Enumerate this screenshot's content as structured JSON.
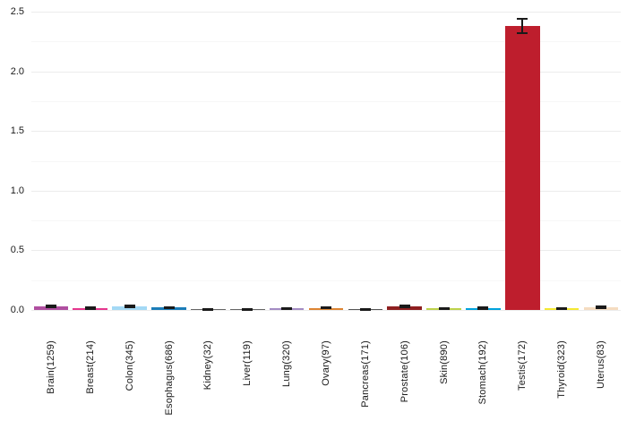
{
  "chart_data": {
    "type": "bar",
    "title": "",
    "xlabel": "",
    "ylabel": "",
    "categories": [
      "Brain(1259)",
      "Breast(214)",
      "Colon(345)",
      "Esophagus(686)",
      "Kidney(32)",
      "Liver(119)",
      "Lung(320)",
      "Ovary(97)",
      "Pancreas(171)",
      "Prostate(106)",
      "Skin(890)",
      "Stomach(192)",
      "Testis(172)",
      "Thyroid(323)",
      "Uterus(83)"
    ],
    "values": [
      0.03,
      0.015,
      0.03,
      0.02,
      0.005,
      0.005,
      0.012,
      0.018,
      0.005,
      0.03,
      0.012,
      0.015,
      2.38,
      0.012,
      0.02
    ],
    "errors": [
      0.01,
      0.005,
      0.009,
      0.006,
      0.004,
      0.004,
      0.005,
      0.006,
      0.004,
      0.008,
      0.005,
      0.006,
      0.06,
      0.005,
      0.007
    ],
    "bar_colors": [
      "#b04fa0",
      "#e5378e",
      "#a3d9f5",
      "#1b7db8",
      "#666666",
      "#666666",
      "#a48cc4",
      "#dd8532",
      "#555555",
      "#8e1f20",
      "#bdd24b",
      "#00a2dc",
      "#be1e2d",
      "#f4e832",
      "#f5dcc0"
    ],
    "error_bar_color": "#1a1a1a",
    "ylim": [
      0,
      2.5
    ],
    "ytick_labels": [
      "0.0",
      "0.5",
      "1.0",
      "1.5",
      "2.0",
      "2.5"
    ],
    "ytick_values": [
      0,
      0.5,
      1.0,
      1.5,
      2.0,
      2.5
    ],
    "minor_grid_values": [
      0.25,
      0.75,
      1.25,
      1.75,
      2.25
    ],
    "grid": "horizontal",
    "legend_position": "none",
    "x_labels_rotation_deg": 90,
    "major_grid_color": "#ececec",
    "minor_grid_color": "#f7f7f7",
    "tick_label_color": "#1a1a1a",
    "background_color": "#ffffff"
  }
}
